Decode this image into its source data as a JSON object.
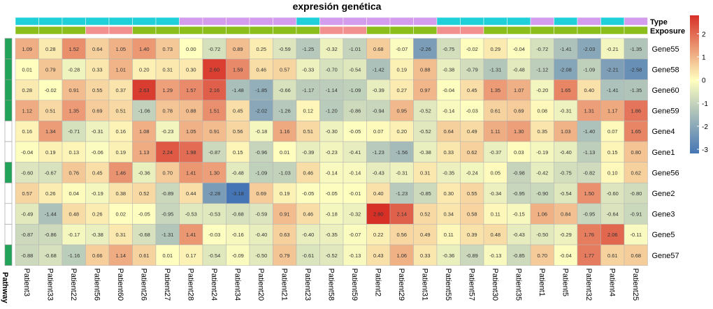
{
  "chart_data": {
    "type": "heatmap",
    "title": "expresión genética",
    "columns": [
      "Patient3",
      "Patient33",
      "Patient22",
      "Patient56",
      "Patient60",
      "Patient26",
      "Patient27",
      "Patient28",
      "Patient24",
      "Patient34",
      "Patient20",
      "Patient21",
      "Patient23",
      "Patient58",
      "Patient59",
      "Patient2",
      "Patient29",
      "Patient31",
      "Patient55",
      "Patient57",
      "Patient30",
      "Patient35",
      "Patient1",
      "Patient5",
      "Patient32",
      "Patient4",
      "Patient25"
    ],
    "rows": [
      "Gene55",
      "Gene58",
      "Gene60",
      "Gene59",
      "Gene4",
      "Gene1",
      "Gene56",
      "Gene2",
      "Gene3",
      "Gene5",
      "Gene57"
    ],
    "values": [
      [
        1.09,
        0.28,
        1.52,
        0.64,
        1.05,
        1.4,
        0.73,
        -0.0,
        -0.72,
        0.89,
        0.25,
        -0.59,
        -1.25,
        -0.32,
        -1.01,
        0.68,
        -0.07,
        -2.26,
        -0.75,
        -0.02,
        0.29,
        -0.04,
        -0.72,
        -1.41,
        -2.03,
        -0.21,
        -1.35
      ],
      [
        0.01,
        0.79,
        -0.28,
        0.33,
        1.01,
        0.2,
        0.31,
        0.3,
        2.6,
        1.59,
        0.46,
        0.57,
        -0.33,
        -0.7,
        -0.54,
        -1.42,
        0.19,
        0.88,
        -0.38,
        -0.79,
        -1.31,
        -0.48,
        -1.12,
        -2.08,
        -1.09,
        -2.21,
        -2.58
      ],
      [
        0.28,
        -0.02,
        0.91,
        0.55,
        0.37,
        2.63,
        1.29,
        1.57,
        2.16,
        -1.48,
        -1.85,
        -0.66,
        -1.17,
        -1.14,
        -1.09,
        -0.39,
        0.27,
        0.97,
        -0.04,
        0.45,
        1.35,
        1.07,
        -0.2,
        1.65,
        0.4,
        -1.41,
        -1.35
      ],
      [
        1.12,
        0.51,
        1.35,
        0.69,
        0.51,
        -1.06,
        0.78,
        0.88,
        1.51,
        0.45,
        -2.02,
        -1.26,
        0.12,
        -1.2,
        -0.86,
        -0.94,
        0.95,
        -0.52,
        -0.14,
        -0.03,
        0.61,
        0.69,
        0.08,
        -0.31,
        1.31,
        1.17,
        1.86
      ],
      [
        0.16,
        1.34,
        -0.71,
        -0.31,
        0.16,
        1.08,
        -0.23,
        1.05,
        0.91,
        0.56,
        -0.18,
        1.16,
        0.51,
        -0.3,
        -0.05,
        0.07,
        0.2,
        -0.52,
        0.64,
        0.49,
        1.11,
        1.3,
        0.35,
        1.03,
        -1.4,
        0.07,
        1.65
      ],
      [
        -0.04,
        0.19,
        0.13,
        -0.06,
        0.19,
        1.13,
        2.24,
        1.98,
        -0.87,
        0.15,
        -0.96,
        0.01,
        -0.39,
        -0.23,
        -0.41,
        -1.23,
        -1.56,
        -0.38,
        0.33,
        0.62,
        -0.37,
        0.03,
        -0.19,
        -0.4,
        -1.13,
        0.15,
        0.8
      ],
      [
        -0.6,
        -0.67,
        0.76,
        0.45,
        1.46,
        -0.36,
        0.7,
        1.41,
        1.3,
        -0.48,
        -1.09,
        -1.03,
        0.46,
        -0.14,
        -0.14,
        -0.43,
        -0.31,
        0.31,
        -0.35,
        -0.24,
        0.05,
        -0.98,
        -0.42,
        -0.75,
        -0.82,
        0.1,
        0.62
      ],
      [
        0.57,
        0.26,
        0.04,
        -0.19,
        0.38,
        0.52,
        -0.89,
        0.44,
        -2.28,
        -3.18,
        0.69,
        0.19,
        -0.05,
        -0.05,
        -0.01,
        0.4,
        -1.23,
        -0.85,
        0.3,
        0.55,
        -0.34,
        -0.95,
        -0.9,
        -0.54,
        1.5,
        -0.6,
        -0.8
      ],
      [
        -0.49,
        -1.44,
        0.48,
        0.26,
        0.02,
        -0.05,
        -0.95,
        -0.53,
        -0.53,
        -0.68,
        -0.59,
        0.91,
        0.46,
        -0.18,
        -0.32,
        2.8,
        2.14,
        0.52,
        0.34,
        0.58,
        0.11,
        -0.15,
        1.06,
        0.84,
        -0.95,
        -0.64,
        -0.91
      ],
      [
        -0.87,
        -0.86,
        -0.17,
        -0.38,
        0.31,
        -0.68,
        -1.31,
        1.41,
        -0.03,
        -0.16,
        -0.4,
        0.63,
        -0.4,
        -0.35,
        -0.07,
        0.22,
        0.56,
        0.49,
        0.11,
        0.39,
        0.48,
        -0.43,
        -0.5,
        -0.29,
        1.76,
        2.06,
        -0.11
      ],
      [
        -0.88,
        -0.68,
        -1.16,
        0.66,
        1.14,
        0.61,
        0.01,
        0.17,
        -0.54,
        -0.09,
        -0.5,
        0.79,
        -0.61,
        -0.52,
        -0.13,
        0.43,
        1.06,
        0.33,
        -0.36,
        -0.89,
        -0.13,
        -0.85,
        0.7,
        -0.04,
        1.77,
        0.61,
        0.68
      ]
    ],
    "type_annotation": [
      "cyan",
      "cyan",
      "cyan",
      "cyan",
      "cyan",
      "cyan",
      "cyan",
      "violet",
      "violet",
      "violet",
      "violet",
      "violet",
      "cyan",
      "violet",
      "violet",
      "violet",
      "violet",
      "violet",
      "cyan",
      "cyan",
      "cyan",
      "cyan",
      "violet",
      "cyan",
      "violet",
      "cyan",
      "violet"
    ],
    "exposure_annotation": [
      "green",
      "green",
      "green",
      "pink",
      "pink",
      "green",
      "green",
      "green",
      "green",
      "green",
      "green",
      "green",
      "green",
      "pink",
      "pink",
      "green",
      "green",
      "green",
      "pink",
      "pink",
      "green",
      "green",
      "green",
      "green",
      "green",
      "green",
      "green"
    ],
    "pathway_annotation": [
      "green",
      "green",
      "green",
      "green",
      "white",
      "white",
      "green",
      "white",
      "white",
      "white",
      "green"
    ],
    "annotation_labels": {
      "type": "Type",
      "exposure": "Exposure",
      "pathway": "Pathway"
    },
    "colors": {
      "cyan": "#1fd0d8",
      "violet": "#d49cec",
      "green_exposure": "#8bbe1b",
      "pink": "#f2908f",
      "pathway_green": "#22a35a",
      "pathway_white": "#ffffff",
      "scale_low": "#4575b4",
      "scale_mid": "#ffffbf",
      "scale_high": "#d73027"
    },
    "legend": {
      "ticks": [
        "2",
        "1",
        "0",
        "-1",
        "-2",
        "-3"
      ],
      "tick_values": [
        2,
        1,
        0,
        -1,
        -2,
        -3
      ],
      "min": -3.18,
      "max": 2.8
    }
  }
}
